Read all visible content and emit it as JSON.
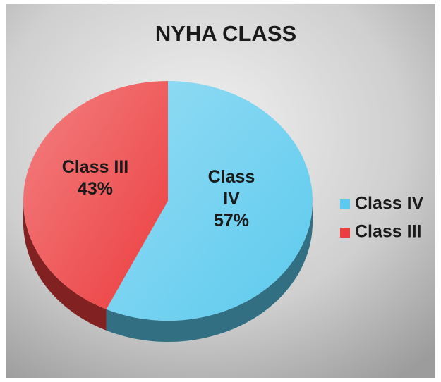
{
  "chart_data": {
    "type": "pie",
    "title": "NYHA CLASS",
    "categories": [
      "Class IV",
      "Class III"
    ],
    "values": [
      57,
      43
    ],
    "value_labels": [
      "57%",
      "43%"
    ],
    "colors": [
      "#5ccaee",
      "#ec3d3f"
    ],
    "legend": "right"
  }
}
